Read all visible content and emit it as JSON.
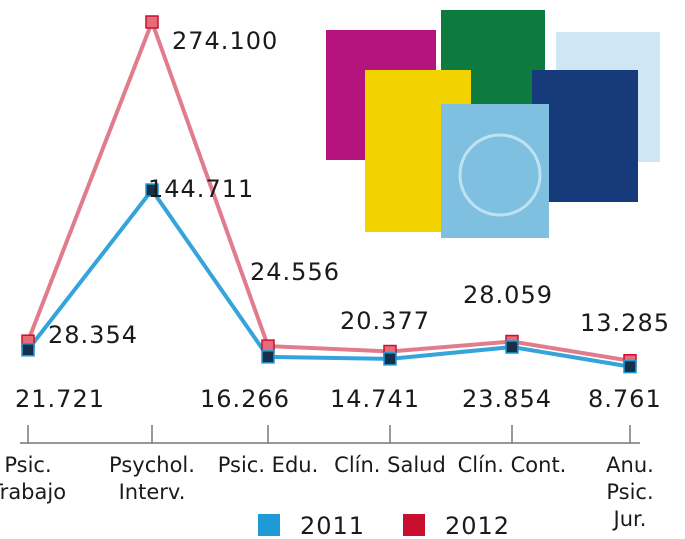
{
  "chart_data": {
    "type": "line",
    "categories": [
      "Psic.\nTrabajo",
      "Psychol.\nInterv.",
      "Psic. Edu.",
      "Clín. Salud",
      "Clín. Cont.",
      "Anu.\nPsic.\nJur."
    ],
    "series": [
      {
        "name": "2011",
        "color": "#1e9ad6",
        "values": [
          21721,
          144711,
          16266,
          14741,
          23854,
          8761
        ],
        "value_labels": [
          "21.721",
          "144.711",
          "16.266",
          "14.741",
          "23.854",
          "8.761"
        ]
      },
      {
        "name": "2012",
        "color": "#c8102e",
        "values": [
          28354,
          274100,
          24556,
          20377,
          28059,
          13285
        ],
        "value_labels": [
          "28.354",
          "274.100",
          "24.556",
          "20.377",
          "28.059",
          "13.285"
        ]
      }
    ]
  }
}
